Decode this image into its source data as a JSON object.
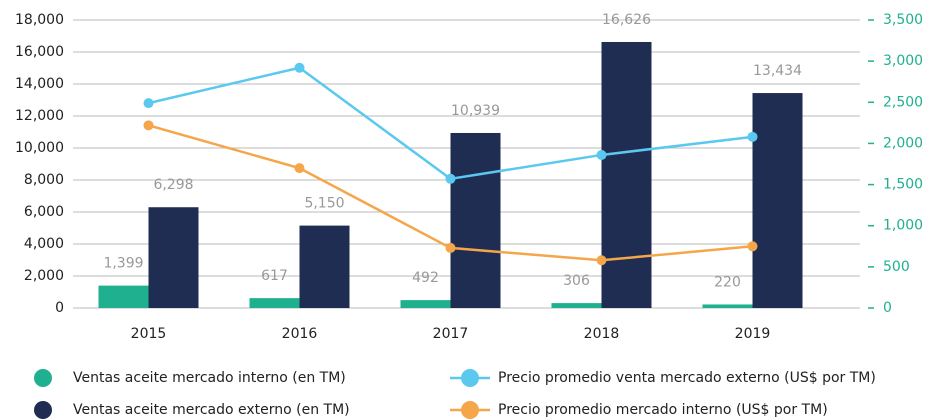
{
  "chart_data": {
    "type": "bar",
    "categories": [
      "2015",
      "2016",
      "2017",
      "2018",
      "2019"
    ],
    "series": [
      {
        "name": "Ventas aceite mercado interno (en TM)",
        "type": "bar",
        "color": "#1fb08f",
        "values": [
          1399,
          617,
          492,
          306,
          220
        ],
        "value_labels": [
          "1,399",
          "617",
          "492",
          "306",
          "220"
        ]
      },
      {
        "name": "Ventas aceite mercado externo (en TM)",
        "type": "bar",
        "color": "#1f2d52",
        "values": [
          6298,
          5150,
          10939,
          16626,
          13434
        ],
        "value_labels": [
          "6,298",
          "5,150",
          "10,939",
          "16,626",
          "13,434"
        ]
      },
      {
        "name": "Precio promedio venta mercado externo (US$ por TM)",
        "type": "line",
        "axis": "y2",
        "color": "#5bc8ef",
        "values": [
          2490,
          2920,
          1570,
          1860,
          2080
        ]
      },
      {
        "name": "Precio promedio mercado interno (US$ por TM)",
        "type": "line",
        "axis": "y2",
        "color": "#f5a54a",
        "values": [
          2220,
          1700,
          730,
          580,
          750
        ]
      }
    ],
    "ylim": [
      0,
      18000
    ],
    "yticks": [
      0,
      {
        "value": 2000,
        "label": "2,000"
      },
      {
        "value": 4000,
        "label": "4,000"
      },
      {
        "value": 6000,
        "label": "6,000"
      },
      {
        "value": 8000,
        "label": "8,000"
      },
      {
        "value": 10000,
        "label": "10,000"
      },
      {
        "value": 12000,
        "label": "12,000"
      },
      {
        "value": 14000,
        "label": "14,000"
      },
      {
        "value": 16000,
        "label": "16,000"
      },
      {
        "value": 18000,
        "label": "18,000"
      }
    ],
    "y2lim": [
      0,
      3500
    ],
    "y2ticks": [
      0,
      500,
      {
        "value": 1000,
        "label": "1,000"
      },
      {
        "value": 1500,
        "label": "1,500"
      },
      {
        "value": 2000,
        "label": "2,000"
      },
      {
        "value": 2500,
        "label": "2,500"
      },
      {
        "value": 3000,
        "label": "3,000"
      },
      {
        "value": 3500,
        "label": "3,500"
      }
    ],
    "grid": true
  }
}
